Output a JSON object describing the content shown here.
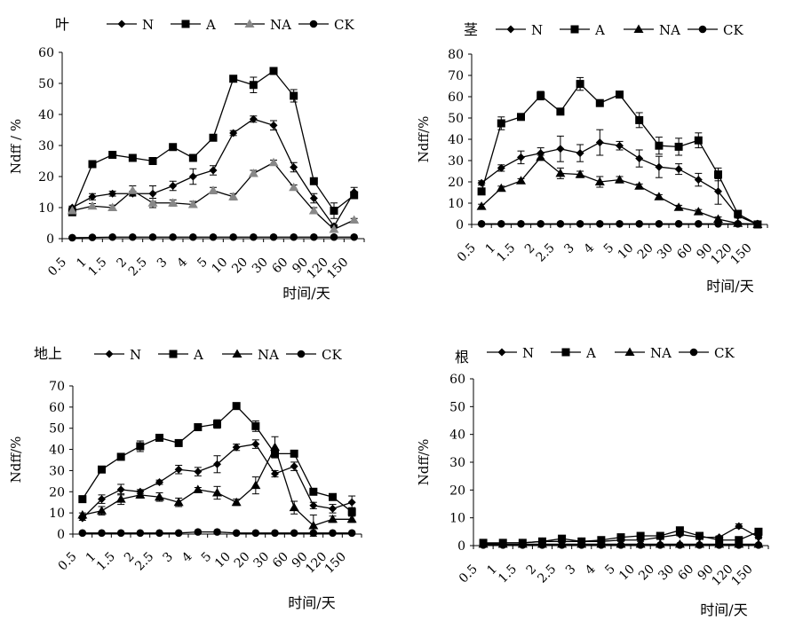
{
  "figure": {
    "background": "#ffffff",
    "ink": "#000000",
    "na_leaf_color": "#888888"
  },
  "chart_data": [
    {
      "id": "leaf",
      "type": "line",
      "title": "叶",
      "xlabel": "时间/天",
      "ylabel": "Ndff / %",
      "ylim": [
        0,
        60
      ],
      "yticks": [
        0,
        10,
        20,
        30,
        40,
        50,
        60
      ],
      "categories": [
        "0.5",
        "1",
        "1.5",
        "2",
        "2.5",
        "3",
        "4",
        "5",
        "10",
        "20",
        "30",
        "60",
        "90",
        "120",
        "150"
      ],
      "grid": false,
      "legend": "top",
      "series": [
        {
          "name": "N",
          "marker": "diamond",
          "values": [
            10,
            13.5,
            14.5,
            14.5,
            14.5,
            17,
            20,
            22,
            34,
            38.5,
            36.5,
            23,
            13,
            4,
            15
          ],
          "errors": [
            0.5,
            1,
            0.8,
            0.8,
            2.5,
            1.5,
            2.5,
            1.5,
            0.8,
            1,
            1.5,
            1.5,
            1.5,
            0.5,
            1.5
          ]
        },
        {
          "name": "A",
          "marker": "square",
          "values": [
            8.5,
            24,
            27,
            26,
            25,
            29.5,
            26,
            32.5,
            51.5,
            49.5,
            54,
            46,
            18.5,
            9,
            14
          ],
          "errors": [
            0.5,
            1,
            0.8,
            0.8,
            0.8,
            0.8,
            0.8,
            0.8,
            0.8,
            2.5,
            0.8,
            2,
            0.8,
            2.5,
            1
          ]
        },
        {
          "name": "NA",
          "marker": "triangle",
          "values": [
            9,
            10.5,
            10,
            15.5,
            11.5,
            11.5,
            11,
            15.5,
            13.5,
            21,
            24.5,
            16.5,
            9,
            3,
            6
          ],
          "errors": [
            0.5,
            0.8,
            0.8,
            1.5,
            1.5,
            1,
            1,
            1,
            1,
            1,
            0.8,
            0.8,
            1,
            0.5,
            0.5
          ]
        },
        {
          "name": "CK",
          "marker": "circle",
          "values": [
            0.3,
            0.4,
            0.5,
            0.5,
            0.5,
            0.5,
            0.5,
            0.5,
            0.5,
            0.5,
            0.5,
            0.5,
            0.5,
            0.5,
            0.5
          ],
          "errors": []
        }
      ]
    },
    {
      "id": "stem",
      "type": "line",
      "title": "茎",
      "xlabel": "时间/天",
      "ylabel": "Ndff/%",
      "ylim": [
        0,
        80
      ],
      "yticks": [
        0,
        10,
        20,
        30,
        40,
        50,
        60,
        70,
        80
      ],
      "categories": [
        "0.5",
        "1",
        "1.5",
        "2",
        "2.5",
        "3",
        "4",
        "5",
        "10",
        "20",
        "30",
        "60",
        "90",
        "120",
        "150"
      ],
      "grid": false,
      "legend": "top",
      "series": [
        {
          "name": "N",
          "marker": "diamond",
          "values": [
            19.5,
            26.5,
            31.5,
            33.5,
            35.5,
            33.5,
            38.5,
            37,
            31,
            27,
            26,
            21,
            15.5,
            4,
            0
          ],
          "errors": [
            1,
            1.5,
            3,
            2.5,
            6,
            4,
            6,
            2,
            4,
            5,
            2.5,
            3,
            6,
            1,
            0.5
          ]
        },
        {
          "name": "A",
          "marker": "square",
          "values": [
            15.5,
            47.5,
            50.5,
            60.5,
            53,
            66,
            57,
            61,
            49,
            37,
            36.5,
            39.5,
            23.5,
            5,
            0
          ],
          "errors": [
            1,
            3,
            1.5,
            2,
            1.5,
            3,
            1.5,
            1.5,
            3.5,
            4,
            4,
            3.5,
            3,
            1,
            0.5
          ]
        },
        {
          "name": "NA",
          "marker": "triangle",
          "values": [
            8.5,
            17,
            20.5,
            31.5,
            24,
            23.5,
            20,
            21,
            18,
            13,
            8,
            6,
            2.5,
            0.5,
            0
          ],
          "errors": [
            1,
            1,
            1,
            1,
            2.5,
            1.5,
            2.5,
            1.5,
            1,
            1,
            1,
            1,
            1,
            0.5,
            0.5
          ]
        },
        {
          "name": "CK",
          "marker": "circle",
          "values": [
            0.3,
            0.3,
            0.3,
            0.3,
            0.3,
            0.3,
            0.3,
            0.3,
            0.3,
            0.3,
            0.3,
            0.3,
            0.3,
            0.3,
            0.3
          ],
          "errors": []
        }
      ]
    },
    {
      "id": "aboveground",
      "type": "line",
      "title": "地上",
      "xlabel": "时间/天",
      "ylabel": "Ndff/%",
      "ylim": [
        0,
        70
      ],
      "yticks": [
        0,
        10,
        20,
        30,
        40,
        50,
        60,
        70
      ],
      "categories": [
        "0.5",
        "1",
        "1.5",
        "2",
        "2.5",
        "3",
        "4",
        "5",
        "10",
        "20",
        "30",
        "60",
        "90",
        "120",
        "150"
      ],
      "grid": false,
      "legend": "top",
      "series": [
        {
          "name": "N",
          "marker": "diamond",
          "values": [
            7.5,
            16.5,
            21,
            20,
            24.5,
            30.5,
            29.5,
            33,
            41,
            42.5,
            28.5,
            32,
            13.5,
            12,
            15
          ],
          "errors": [
            1,
            2,
            2.5,
            1,
            1,
            2,
            2,
            4,
            1.5,
            2,
            1.5,
            2,
            1.5,
            2,
            3
          ]
        },
        {
          "name": "A",
          "marker": "square",
          "values": [
            16.5,
            30.5,
            36.5,
            41.5,
            45.5,
            43,
            50.5,
            52,
            60.5,
            51,
            38,
            38,
            20,
            17.5,
            10.5
          ],
          "errors": [
            1,
            1,
            1.5,
            2.5,
            1,
            1,
            1,
            2,
            1,
            2.5,
            1.5,
            1,
            1,
            1,
            2
          ]
        },
        {
          "name": "NA",
          "marker": "triangle",
          "values": [
            9,
            11,
            16.5,
            18.5,
            17.5,
            15,
            21,
            19.5,
            15,
            23,
            41,
            12.5,
            4,
            7,
            7
          ],
          "errors": [
            1,
            2,
            2.5,
            1.5,
            2,
            2,
            1,
            3,
            1.5,
            4,
            5,
            3,
            5,
            1.5,
            1.5
          ]
        },
        {
          "name": "CK",
          "marker": "circle",
          "values": [
            0.5,
            0.5,
            0.5,
            0.5,
            0.5,
            0.5,
            1,
            1,
            0.5,
            0.5,
            0.5,
            0.5,
            0.5,
            0.5,
            0.5
          ],
          "errors": []
        }
      ]
    },
    {
      "id": "root",
      "type": "line",
      "title": "根",
      "xlabel": "时间/天",
      "ylabel": "Ndff/%",
      "ylim": [
        0,
        60
      ],
      "yticks": [
        0,
        10,
        20,
        30,
        40,
        50,
        60
      ],
      "categories": [
        "0.5",
        "1",
        "1.5",
        "2",
        "2.5",
        "3",
        "4",
        "5",
        "10",
        "20",
        "30",
        "60",
        "90",
        "120",
        "150"
      ],
      "grid": false,
      "legend": "top",
      "series": [
        {
          "name": "N",
          "marker": "diamond",
          "values": [
            0.5,
            1,
            1,
            1.5,
            1.5,
            1.5,
            1.5,
            2,
            2,
            3,
            4,
            3,
            3,
            7,
            3
          ],
          "errors": [
            0.3,
            0.3,
            0.3,
            0.3,
            0.3,
            0.3,
            0.3,
            0.5,
            0.5,
            0.5,
            0.5,
            0.5,
            0.5,
            0.8,
            0.5
          ]
        },
        {
          "name": "A",
          "marker": "square",
          "values": [
            1,
            1,
            1,
            1.5,
            2.5,
            1.5,
            2,
            3,
            3.5,
            3.5,
            5.5,
            3.5,
            2,
            2,
            5
          ],
          "errors": [
            0.3,
            0.3,
            0.3,
            0.3,
            0.5,
            0.3,
            0.3,
            0.5,
            0.5,
            0.5,
            0.8,
            0.5,
            0.5,
            0.5,
            0.8
          ]
        },
        {
          "name": "NA",
          "marker": "triangle",
          "values": [
            0.5,
            0.5,
            0.5,
            0.5,
            0.5,
            0.5,
            0.5,
            0.5,
            0.5,
            0.5,
            0.5,
            0.5,
            0.5,
            0.5,
            0.5
          ],
          "errors": []
        },
        {
          "name": "CK",
          "marker": "circle",
          "values": [
            0.2,
            0.2,
            0.2,
            0.2,
            0.2,
            0.2,
            0.2,
            0.2,
            0.2,
            0.2,
            0.2,
            0.2,
            0.2,
            0.2,
            0.2
          ],
          "errors": []
        }
      ]
    }
  ]
}
